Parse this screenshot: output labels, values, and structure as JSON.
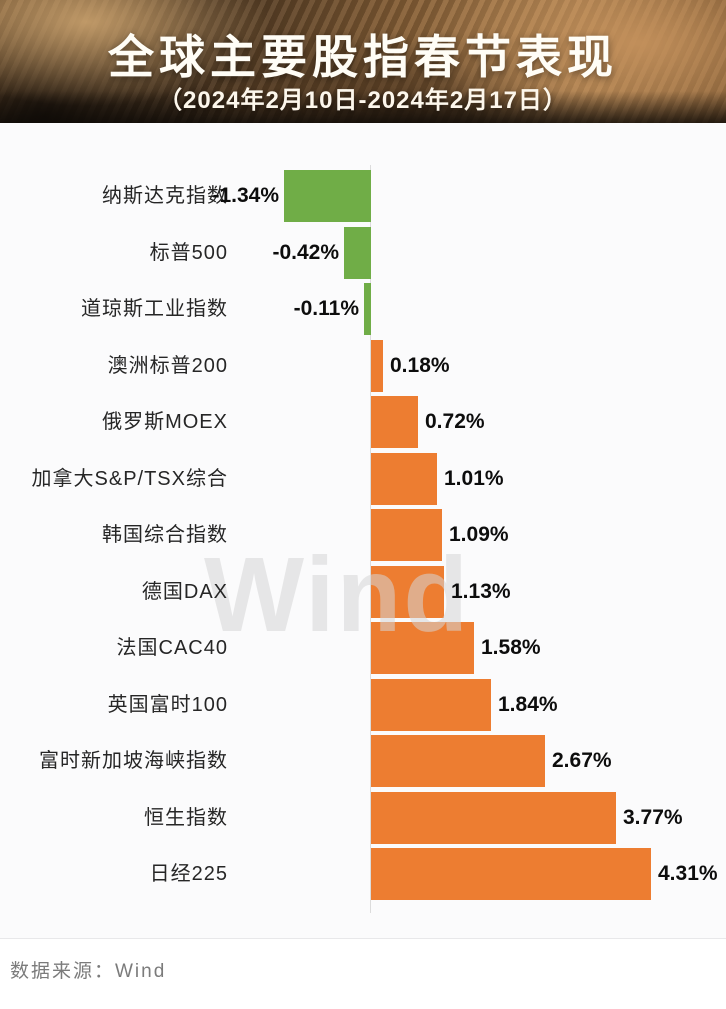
{
  "header": {
    "title": "全球主要股指春节表现",
    "subtitle": "（2024年2月10日-2024年2月17日）"
  },
  "chart_data": {
    "type": "bar",
    "orientation": "horizontal",
    "title": "全球主要股指春节表现（2024年2月10日-2024年2月17日）",
    "categories": [
      "纳斯达克指数",
      "标普500",
      "道琼斯工业指数",
      "澳洲标普200",
      "俄罗斯MOEX",
      "加拿大S&P/TSX综合",
      "韩国综合指数",
      "德国DAX",
      "法国CAC40",
      "英国富时100",
      "富时新加坡海峡指数",
      "恒生指数",
      "日经225"
    ],
    "values": [
      -1.34,
      -0.42,
      -0.11,
      0.18,
      0.72,
      1.01,
      1.09,
      1.13,
      1.58,
      1.84,
      2.67,
      3.77,
      4.31
    ],
    "value_labels": [
      "-1.34%",
      "-0.42%",
      "-0.11%",
      "0.18%",
      "0.72%",
      "1.01%",
      "1.09%",
      "1.13%",
      "1.58%",
      "1.84%",
      "2.67%",
      "3.77%",
      "4.31%"
    ],
    "unit": "%",
    "xlim": [
      -1.5,
      4.6
    ],
    "grid": false,
    "legend": false,
    "positive_color": "#ED7D31",
    "negative_color": "#70AD47"
  },
  "watermark": "Wind",
  "footer": {
    "source_label": "数据来源：Wind"
  }
}
